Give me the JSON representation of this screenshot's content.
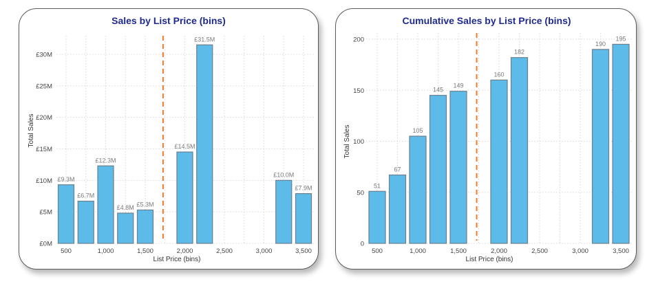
{
  "chart_data": [
    {
      "type": "bar",
      "title": "Sales by List Price (bins)",
      "xlabel": "List Price (bins)",
      "ylabel": "Total Sales",
      "x_ticks": [
        500,
        1000,
        1500,
        2000,
        2500,
        3000,
        3500
      ],
      "x_tick_labels": [
        "500",
        "1,000",
        "1,500",
        "2,000",
        "2,500",
        "3,000",
        "3,500"
      ],
      "y_ticks": [
        0,
        5,
        10,
        15,
        20,
        25,
        30
      ],
      "y_tick_labels": [
        "£0M",
        "£5M",
        "£10M",
        "£15M",
        "£20M",
        "£25M",
        "£30M"
      ],
      "xlim": [
        400,
        3600
      ],
      "ylim": [
        0,
        32.5
      ],
      "x": [
        500,
        750,
        1000,
        1250,
        1500,
        2000,
        2250,
        3250,
        3500
      ],
      "values": [
        9.3,
        6.7,
        12.3,
        4.8,
        5.3,
        14.5,
        31.5,
        10.0,
        7.9
      ],
      "data_labels": [
        "£9.3M",
        "£6.7M",
        "£12.3M",
        "£4.8M",
        "£5.3M",
        "£14.5M",
        "£31.5M",
        "£10.0M",
        "£7.9M"
      ],
      "units": "£M",
      "reference_line": {
        "x": 1725,
        "style": "dashed",
        "color": "#ee7a2e"
      },
      "bar_color": "#5dbbea",
      "grid": true,
      "legend": "none"
    },
    {
      "type": "bar",
      "title": "Cumulative Sales by List Price (bins)",
      "xlabel": "List Price (bins)",
      "ylabel": "Total Sales",
      "x_ticks": [
        500,
        1000,
        1500,
        2000,
        2500,
        3000,
        3500
      ],
      "x_tick_labels": [
        "500",
        "1,000",
        "1,500",
        "2,000",
        "2,500",
        "3,000",
        "3,500"
      ],
      "y_ticks": [
        0,
        50,
        100,
        150,
        200
      ],
      "y_tick_labels": [
        "0",
        "50",
        "100",
        "150",
        "200"
      ],
      "xlim": [
        400,
        3600
      ],
      "ylim": [
        0,
        205
      ],
      "x": [
        500,
        750,
        1000,
        1250,
        1500,
        2000,
        2250,
        3250,
        3500
      ],
      "values": [
        51,
        67,
        105,
        145,
        149,
        160,
        182,
        190,
        195
      ],
      "data_labels": [
        "51",
        "67",
        "105",
        "145",
        "149",
        "160",
        "182",
        "190",
        "195"
      ],
      "reference_line": {
        "x": 1725,
        "style": "dashed",
        "color": "#ee7a2e"
      },
      "bar_color": "#5dbbea",
      "grid": true,
      "legend": "none"
    }
  ]
}
